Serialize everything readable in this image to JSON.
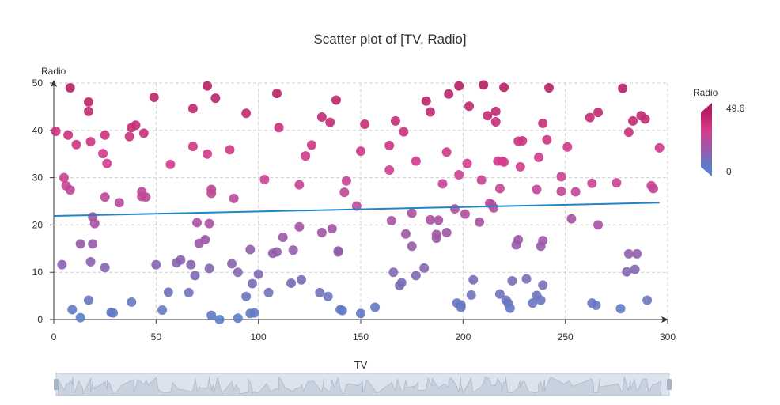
{
  "chart_data": {
    "type": "scatter",
    "title": "Scatter plot of [TV, Radio]",
    "xlabel": "TV",
    "ylabel": "Radio",
    "xlim": [
      0,
      300
    ],
    "ylim": [
      0,
      50
    ],
    "x_ticks": [
      "0",
      "50",
      "100",
      "150",
      "200",
      "250",
      "300"
    ],
    "y_ticks": [
      "0",
      "10",
      "20",
      "30",
      "40",
      "50"
    ],
    "grid": true,
    "points": [
      [
        1,
        39.8
      ],
      [
        4,
        11.6
      ],
      [
        5,
        30
      ],
      [
        6,
        28.3
      ],
      [
        7,
        39
      ],
      [
        8,
        27.4
      ],
      [
        8,
        49
      ],
      [
        9,
        2.1
      ],
      [
        11,
        37
      ],
      [
        13,
        16
      ],
      [
        13,
        0.4
      ],
      [
        17,
        44
      ],
      [
        17,
        46
      ],
      [
        17,
        4.1
      ],
      [
        18,
        37.6
      ],
      [
        18,
        12.2
      ],
      [
        19,
        21.7
      ],
      [
        19,
        16
      ],
      [
        20,
        20.3
      ],
      [
        24,
        35.1
      ],
      [
        25,
        11
      ],
      [
        25,
        39
      ],
      [
        25,
        25.9
      ],
      [
        26,
        33
      ],
      [
        28,
        1.5
      ],
      [
        29,
        1.4
      ],
      [
        32,
        24.7
      ],
      [
        37,
        38.7
      ],
      [
        38,
        40.6
      ],
      [
        38,
        3.7
      ],
      [
        40,
        41.1
      ],
      [
        43,
        27
      ],
      [
        43,
        26
      ],
      [
        44,
        39.4
      ],
      [
        45,
        25.9
      ],
      [
        49,
        47
      ],
      [
        50,
        11.6
      ],
      [
        53,
        2
      ],
      [
        56,
        5.8
      ],
      [
        57,
        32.8
      ],
      [
        60,
        12
      ],
      [
        62,
        12.6
      ],
      [
        66,
        5.7
      ],
      [
        67,
        11.6
      ],
      [
        68,
        36.6
      ],
      [
        68,
        44.6
      ],
      [
        69,
        9.3
      ],
      [
        70,
        20.5
      ],
      [
        71,
        16.1
      ],
      [
        74,
        16.9
      ],
      [
        75,
        49.4
      ],
      [
        75,
        35
      ],
      [
        76,
        20.3
      ],
      [
        76,
        10.8
      ],
      [
        77,
        27.5
      ],
      [
        77,
        26.7
      ],
      [
        77,
        0.9
      ],
      [
        79,
        46.8
      ],
      [
        81,
        0
      ],
      [
        86,
        35.9
      ],
      [
        87,
        11.8
      ],
      [
        88,
        25.6
      ],
      [
        90,
        10
      ],
      [
        90,
        0.3
      ],
      [
        94,
        4.9
      ],
      [
        94,
        43.6
      ],
      [
        96,
        14.8
      ],
      [
        96,
        1.3
      ],
      [
        97,
        7.6
      ],
      [
        98,
        1.4
      ],
      [
        100,
        9.6
      ],
      [
        103,
        29.6
      ],
      [
        105,
        5.7
      ],
      [
        107,
        14
      ],
      [
        109,
        14.3
      ],
      [
        109,
        47.8
      ],
      [
        110,
        40.6
      ],
      [
        112,
        17.4
      ],
      [
        116,
        7.7
      ],
      [
        117,
        14.7
      ],
      [
        120,
        19.6
      ],
      [
        120,
        28.5
      ],
      [
        121,
        8.4
      ],
      [
        123,
        34.6
      ],
      [
        126,
        36.9
      ],
      [
        130,
        5.7
      ],
      [
        131,
        42.8
      ],
      [
        131,
        18.4
      ],
      [
        134,
        4.9
      ],
      [
        135,
        41.7
      ],
      [
        136,
        19.2
      ],
      [
        138,
        46.4
      ],
      [
        139,
        14.5
      ],
      [
        139,
        14.3
      ],
      [
        140,
        2.1
      ],
      [
        141,
        1.9
      ],
      [
        142,
        26.9
      ],
      [
        143,
        29.3
      ],
      [
        148,
        24
      ],
      [
        150,
        35.6
      ],
      [
        150,
        1.3
      ],
      [
        152,
        41.3
      ],
      [
        157,
        2.6
      ],
      [
        164,
        31.6
      ],
      [
        164,
        36.8
      ],
      [
        165,
        20.9
      ],
      [
        166,
        10
      ],
      [
        167,
        42
      ],
      [
        169,
        7.2
      ],
      [
        170,
        7.8
      ],
      [
        171,
        39.7
      ],
      [
        172,
        18.1
      ],
      [
        175,
        22.5
      ],
      [
        175,
        15.5
      ],
      [
        177,
        33.5
      ],
      [
        177,
        9.3
      ],
      [
        181,
        10.9
      ],
      [
        182,
        46.2
      ],
      [
        184,
        21.1
      ],
      [
        184,
        43.9
      ],
      [
        187,
        17.2
      ],
      [
        187,
        18
      ],
      [
        188,
        21
      ],
      [
        190,
        28.7
      ],
      [
        192,
        18.4
      ],
      [
        192,
        35.4
      ],
      [
        193,
        47.7
      ],
      [
        196,
        23.4
      ],
      [
        197,
        3.5
      ],
      [
        198,
        49.4
      ],
      [
        198,
        30.6
      ],
      [
        199,
        3.1
      ],
      [
        199,
        2.6
      ],
      [
        201,
        22.3
      ],
      [
        202,
        33
      ],
      [
        203,
        45.1
      ],
      [
        204,
        5.2
      ],
      [
        205,
        8.4
      ],
      [
        208,
        20.6
      ],
      [
        209,
        29.5
      ],
      [
        210,
        49.6
      ],
      [
        212,
        43.1
      ],
      [
        213,
        24.6
      ],
      [
        214,
        24.3
      ],
      [
        215,
        23.6
      ],
      [
        216,
        41.8
      ],
      [
        216,
        44
      ],
      [
        217,
        33.5
      ],
      [
        218,
        27.7
      ],
      [
        218,
        5.4
      ],
      [
        219,
        33.5
      ],
      [
        220,
        33.3
      ],
      [
        220,
        49.1
      ],
      [
        221,
        4.1
      ],
      [
        222,
        3.5
      ],
      [
        223,
        2.4
      ],
      [
        224,
        8.2
      ],
      [
        226,
        15.8
      ],
      [
        227,
        37.7
      ],
      [
        227,
        16.9
      ],
      [
        228,
        32.3
      ],
      [
        229,
        37.8
      ],
      [
        231,
        8.6
      ],
      [
        234,
        3.5
      ],
      [
        236,
        5.1
      ],
      [
        236,
        27.5
      ],
      [
        237,
        34.3
      ],
      [
        238,
        15.5
      ],
      [
        238,
        4.1
      ],
      [
        239,
        41.5
      ],
      [
        239,
        16.7
      ],
      [
        239,
        7.3
      ],
      [
        241,
        38
      ],
      [
        242,
        49
      ],
      [
        248,
        30.2
      ],
      [
        248,
        27.1
      ],
      [
        251,
        36.5
      ],
      [
        253,
        21.3
      ],
      [
        255,
        27
      ],
      [
        262,
        42.7
      ],
      [
        263,
        28.8
      ],
      [
        263,
        3.5
      ],
      [
        265,
        3
      ],
      [
        266,
        43.8
      ],
      [
        266,
        20
      ],
      [
        275,
        28.9
      ],
      [
        277,
        2.3
      ],
      [
        278,
        48.9
      ],
      [
        280,
        10.1
      ],
      [
        281,
        39.6
      ],
      [
        281,
        13.9
      ],
      [
        283,
        42
      ],
      [
        284,
        10.6
      ],
      [
        285,
        13.9
      ],
      [
        287,
        43.1
      ],
      [
        289,
        42.4
      ],
      [
        290,
        4.1
      ],
      [
        292,
        28.3
      ],
      [
        293,
        27.7
      ],
      [
        296,
        36.3
      ]
    ],
    "regression_line": {
      "x": [
        0,
        296
      ],
      "y": [
        21.9,
        24.7
      ]
    },
    "colorbar": {
      "title": "Radio",
      "min_label": "0",
      "max_label": "49.6",
      "min": 0,
      "max": 49.6,
      "colors": [
        "#5B7EC7",
        "#9A58A7",
        "#D53C8C",
        "#B51F62"
      ]
    },
    "slider": {
      "label": "TV"
    },
    "colors": {
      "line": "#1E87C9",
      "grid": "#D0D0D0",
      "axis": "#333333",
      "slider_fill": "#C8D1DE",
      "slider_handle": "#A9B4C4"
    }
  }
}
